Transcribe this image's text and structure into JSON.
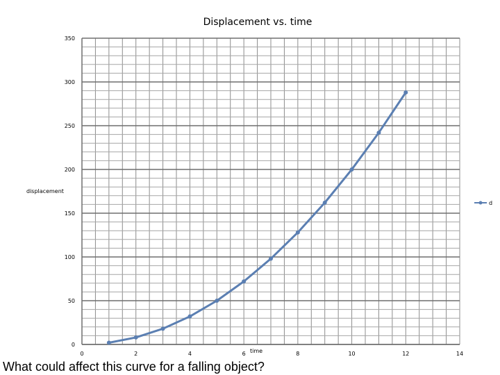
{
  "chart_data": {
    "type": "line",
    "title": "Displacement vs. time",
    "xlabel": "time",
    "ylabel": "displacement",
    "xlim": [
      0,
      14
    ],
    "ylim": [
      0,
      350
    ],
    "x_ticks": [
      0,
      2,
      4,
      6,
      8,
      10,
      12,
      14
    ],
    "y_ticks": [
      0,
      50,
      100,
      150,
      200,
      250,
      300,
      350
    ],
    "grid": true,
    "legend_position": "right",
    "series": [
      {
        "name": "d",
        "color": "#5b7fb2",
        "x": [
          1,
          2,
          3,
          4,
          5,
          6,
          7,
          8,
          9,
          10,
          11,
          12
        ],
        "y": [
          2,
          8,
          18,
          32,
          50,
          72,
          98,
          128,
          162,
          200,
          242,
          288
        ]
      }
    ]
  },
  "question": "What could affect this curve for a falling object?"
}
